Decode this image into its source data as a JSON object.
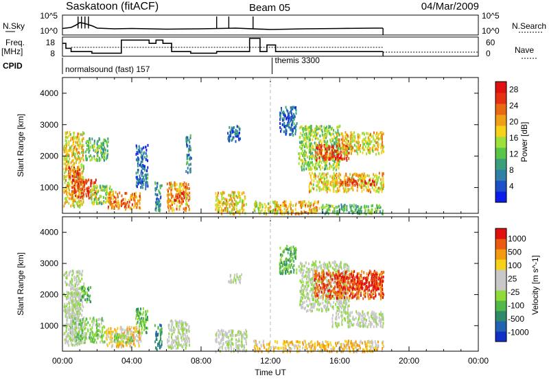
{
  "header": {
    "station": "Saskatoon (fitACF)",
    "beam": "Beam 05",
    "date": "04/Mar/2009"
  },
  "side_labels": {
    "nsky": "N.Sky",
    "freq": "Freq.",
    "freq_unit": "[MHz]",
    "cpid": "CPID",
    "nsearch": "N.Search",
    "nave": "Nave"
  },
  "cpid_segments": [
    {
      "label": "normalsound (fast) 157"
    },
    {
      "label": "themis 3300"
    }
  ],
  "chart_data": [
    {
      "type": "line",
      "title": "",
      "ylabel": "N.Sky",
      "y2label": "N.Search",
      "yticks": [
        "10^5",
        "10^0"
      ],
      "y2ticks": [
        "10^5",
        "10^0"
      ],
      "series": [
        {
          "name": "N.Sky",
          "x": [
            0.0,
            0.5,
            0.75,
            1.0,
            1.25,
            1.5,
            1.75,
            2.0,
            3.0,
            4.0,
            6.0,
            8.0,
            10.0,
            12.0,
            14.0,
            16.0,
            18.0,
            18.5
          ],
          "y": [
            1.5,
            1.8,
            2.4,
            3.2,
            3.0,
            2.6,
            2.2,
            1.6,
            1.4,
            1.5,
            1.3,
            1.4,
            1.6,
            1.2,
            1.4,
            1.5,
            1.6,
            1.6
          ]
        }
      ]
    },
    {
      "type": "line",
      "ylabel": "Freq. [MHz]",
      "y2label": "Nave",
      "yticks": [
        "18",
        "8"
      ],
      "y2ticks": [
        "60",
        "0"
      ],
      "series": [
        {
          "name": "Freq.",
          "x": [
            0.0,
            0.2,
            0.2,
            0.5,
            0.5,
            1.7,
            1.7,
            3.4,
            3.4,
            5.0,
            5.0,
            5.4,
            5.4,
            5.8,
            5.8,
            6.3,
            6.3,
            7.4,
            7.4,
            8.9,
            8.9,
            10.8,
            10.8,
            11.4,
            11.4,
            11.8,
            11.8,
            12.3,
            12.3,
            18.5
          ],
          "y": [
            15,
            15,
            12,
            12,
            10,
            10,
            9,
            9,
            17,
            17,
            15,
            15,
            17,
            17,
            15,
            15,
            10,
            10,
            9,
            9,
            10,
            10,
            18,
            18,
            10,
            10,
            14,
            14,
            10,
            10
          ]
        }
      ]
    },
    {
      "type": "heatmap",
      "ylabel": "Slant Range [km]",
      "xlabel": "",
      "ylim": [
        180,
        4500
      ],
      "xlim": [
        0,
        24
      ],
      "yticks": [
        1000,
        2000,
        3000,
        4000
      ],
      "colorbar": {
        "label": "Power [dB]",
        "ticks": [
          4,
          8,
          12,
          16,
          20,
          24,
          28
        ],
        "range": [
          0,
          30
        ],
        "colors": [
          "#0a1dea",
          "#1d4fc7",
          "#2f7fa6",
          "#3b9f7a",
          "#58c548",
          "#9ee03a",
          "#f7d21a",
          "#f0a018",
          "#ea6a14",
          "#e53012",
          "#e01010"
        ]
      },
      "regions": [
        {
          "t0": 0.05,
          "t1": 1.2,
          "r0": 400,
          "r1": 2800,
          "v": 18
        },
        {
          "t0": 0.5,
          "t1": 1.9,
          "r0": 700,
          "r1": 1300,
          "v": 26
        },
        {
          "t0": 0.3,
          "t1": 1.0,
          "r0": 1300,
          "r1": 1700,
          "v": 24
        },
        {
          "t0": 1.6,
          "t1": 2.8,
          "r0": 500,
          "r1": 1100,
          "v": 14
        },
        {
          "t0": 1.3,
          "t1": 2.6,
          "r0": 1900,
          "r1": 2600,
          "v": 12
        },
        {
          "t0": 2.6,
          "t1": 4.5,
          "r0": 350,
          "r1": 900,
          "v": 22
        },
        {
          "t0": 4.2,
          "t1": 4.9,
          "r0": 1000,
          "r1": 2400,
          "v": 6
        },
        {
          "t0": 5.3,
          "t1": 5.7,
          "r0": 250,
          "r1": 1200,
          "v": 8
        },
        {
          "t0": 6.0,
          "t1": 7.3,
          "r0": 300,
          "r1": 1200,
          "v": 20
        },
        {
          "t0": 6.4,
          "t1": 7.0,
          "r0": 600,
          "r1": 900,
          "v": 26
        },
        {
          "t0": 7.1,
          "t1": 7.4,
          "r0": 1500,
          "r1": 2700,
          "v": 8
        },
        {
          "t0": 8.8,
          "t1": 10.6,
          "r0": 200,
          "r1": 900,
          "v": 18
        },
        {
          "t0": 9.5,
          "t1": 10.3,
          "r0": 2500,
          "r1": 3000,
          "v": 6
        },
        {
          "t0": 11.0,
          "t1": 12.4,
          "r0": 200,
          "r1": 600,
          "v": 16
        },
        {
          "t0": 12.2,
          "t1": 14.8,
          "r0": 200,
          "r1": 600,
          "v": 20
        },
        {
          "t0": 14.8,
          "t1": 18.5,
          "r0": 200,
          "r1": 500,
          "v": 12
        },
        {
          "t0": 13.6,
          "t1": 16.0,
          "r0": 1600,
          "r1": 3000,
          "v": 14
        },
        {
          "t0": 14.5,
          "t1": 16.5,
          "r0": 1900,
          "r1": 2400,
          "v": 26
        },
        {
          "t0": 15.8,
          "t1": 18.5,
          "r0": 2100,
          "r1": 2800,
          "v": 18
        },
        {
          "t0": 14.2,
          "t1": 18.5,
          "r0": 900,
          "r1": 1500,
          "v": 18
        },
        {
          "t0": 16.0,
          "t1": 18.0,
          "r0": 1100,
          "r1": 1300,
          "v": 26
        },
        {
          "t0": 12.5,
          "t1": 13.5,
          "r0": 2700,
          "r1": 3600,
          "v": 6
        }
      ]
    },
    {
      "type": "heatmap",
      "ylabel": "Slant Range [km]",
      "xlabel": "Time UT",
      "ylim": [
        180,
        4500
      ],
      "xlim": [
        0,
        24
      ],
      "yticks": [
        1000,
        2000,
        3000,
        4000
      ],
      "xticks": [
        "00:00",
        "04:00",
        "08:00",
        "12:00",
        "16:00",
        "20:00",
        "00:00"
      ],
      "colorbar": {
        "label": "Velocity [m s^-1]",
        "ticks": [
          "1000",
          "500",
          "100",
          "25",
          "-25",
          "-100",
          "-500",
          "-1000"
        ],
        "colors": [
          "#1030c8",
          "#2262b0",
          "#2f8a6a",
          "#52b84a",
          "#8edb3a",
          "#c8c8c8",
          "#c8c8c8",
          "#f7d21a",
          "#f29a10",
          "#ea5a10",
          "#e01010"
        ]
      },
      "regions": [
        {
          "t0": 0.05,
          "t1": 1.2,
          "r0": 400,
          "r1": 2800,
          "c": 5
        },
        {
          "t0": 0.4,
          "t1": 2.4,
          "r0": 500,
          "r1": 1300,
          "c": 4
        },
        {
          "t0": 0.2,
          "t1": 1.0,
          "r0": 1300,
          "r1": 2100,
          "c": 5
        },
        {
          "t0": 1.0,
          "t1": 1.6,
          "r0": 1800,
          "r1": 2300,
          "c": 3
        },
        {
          "t0": 2.4,
          "t1": 4.5,
          "r0": 350,
          "r1": 1000,
          "c": 7
        },
        {
          "t0": 2.8,
          "t1": 4.0,
          "r0": 500,
          "r1": 800,
          "c": 4
        },
        {
          "t0": 4.2,
          "t1": 4.9,
          "r0": 800,
          "r1": 1600,
          "c": 3
        },
        {
          "t0": 5.3,
          "t1": 5.7,
          "r0": 250,
          "r1": 1100,
          "c": 2
        },
        {
          "t0": 6.0,
          "t1": 7.3,
          "r0": 300,
          "r1": 1200,
          "c": 5
        },
        {
          "t0": 8.8,
          "t1": 10.6,
          "r0": 200,
          "r1": 900,
          "c": 5
        },
        {
          "t0": 9.5,
          "t1": 10.3,
          "r0": 2400,
          "r1": 2700,
          "c": 5
        },
        {
          "t0": 11.0,
          "t1": 18.5,
          "r0": 200,
          "r1": 550,
          "c": 7
        },
        {
          "t0": 13.6,
          "t1": 16.5,
          "r0": 1500,
          "r1": 3100,
          "c": 5
        },
        {
          "t0": 15.5,
          "t1": 18.5,
          "r0": 1000,
          "r1": 1500,
          "c": 5
        },
        {
          "t0": 14.5,
          "t1": 18.5,
          "r0": 1900,
          "r1": 2800,
          "c": 9
        },
        {
          "t0": 15.8,
          "t1": 18.3,
          "r0": 2200,
          "r1": 2600,
          "c": 10
        },
        {
          "t0": 12.5,
          "t1": 13.5,
          "r0": 2700,
          "r1": 3600,
          "c": 3
        }
      ]
    }
  ],
  "marker_time": 12.0
}
